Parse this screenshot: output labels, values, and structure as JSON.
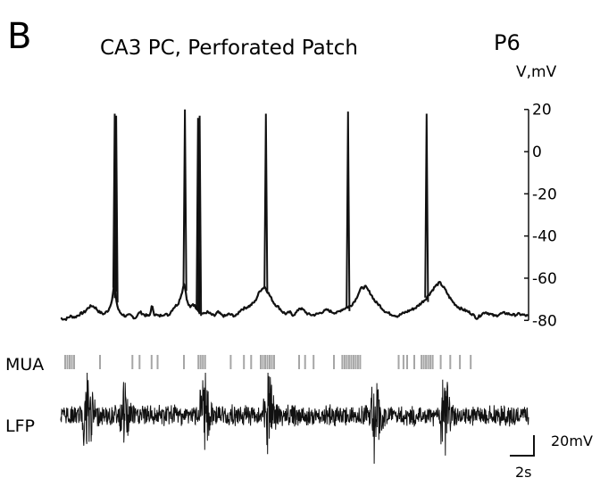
{
  "panel_letter": "B",
  "title": "CA3 PC, Perforated Patch",
  "age_label": "P6",
  "colors": {
    "trace": "#111111",
    "mua": "#a6a6a6",
    "axis": "#111111",
    "background": "#ffffff"
  },
  "chart_data": {
    "type": "line",
    "title": "CA3 PC, Perforated Patch",
    "series": [
      {
        "x": [
          0.0,
          0.4,
          0.8,
          1.2,
          1.6,
          2.0,
          2.3,
          2.6,
          2.9,
          3.2,
          3.6,
          4.0,
          4.3,
          4.45,
          4.55,
          4.65,
          4.75,
          4.9,
          5.1,
          5.4,
          5.8,
          6.2,
          6.6,
          7.0,
          7.4,
          7.6,
          7.8,
          8.2,
          8.6,
          9.0,
          9.4,
          9.8,
          10.1,
          10.3,
          10.4,
          10.5,
          10.6,
          10.8,
          11.0,
          11.3,
          11.6,
          11.9,
          12.2,
          12.5,
          12.8,
          13.1,
          13.4,
          13.7,
          14.0,
          14.3,
          14.6,
          15.0,
          15.4,
          15.8,
          16.2,
          16.6,
          17.0,
          17.4,
          17.8,
          18.2,
          18.5,
          18.8,
          19.1,
          19.3,
          19.5,
          19.7,
          19.9,
          20.2,
          20.6,
          21.0,
          21.4,
          21.8,
          22.2,
          22.6,
          23.0,
          23.4,
          23.8,
          24.2,
          24.6,
          25.0,
          25.4,
          25.8,
          26.2,
          26.6,
          26.9,
          27.1,
          27.3,
          27.5,
          27.8,
          28.1,
          28.4,
          28.8,
          29.2,
          29.6,
          30.0,
          30.4,
          30.8,
          31.2,
          31.6,
          32.0,
          32.4,
          32.8,
          33.2,
          33.6,
          34.0,
          34.3,
          34.5,
          34.7,
          34.9,
          35.1,
          35.4,
          35.8,
          36.2,
          36.6,
          37.0,
          37.4,
          37.8,
          38.2,
          38.6,
          39.0
        ],
        "y": [
          -79,
          -79.5,
          -78,
          -78.5,
          -77,
          -76,
          -74,
          -73,
          -74,
          -76,
          -77,
          -75,
          -70,
          -63,
          -66,
          -71,
          -74,
          -76,
          -77,
          -78,
          -77.5,
          -79,
          -76,
          -77.5,
          -78,
          -73,
          -77,
          -78,
          -77,
          -77.5,
          -74,
          -72,
          -67,
          -62,
          -66,
          -70,
          -72,
          -74,
          -72,
          -74,
          -76,
          -77,
          -76,
          -77,
          -78,
          -76,
          -77.5,
          -78,
          -77,
          -77.5,
          -78,
          -75,
          -74,
          -73,
          -71,
          -66,
          -64,
          -68,
          -72,
          -74,
          -76,
          -77,
          -76,
          -77.5,
          -77,
          -76,
          -74,
          -75,
          -77,
          -77.5,
          -77,
          -76,
          -75,
          -76,
          -76.5,
          -75,
          -74,
          -73,
          -70,
          -65,
          -64,
          -67,
          -71,
          -73,
          -75,
          -76,
          -76.5,
          -77,
          -77.5,
          -78,
          -77,
          -76,
          -75,
          -74,
          -72,
          -70,
          -67,
          -64,
          -62,
          -65,
          -69,
          -72,
          -74,
          -75,
          -76,
          -77,
          -78,
          -79,
          -78,
          -77,
          -76,
          -77,
          -78,
          -77,
          -76.5,
          -77,
          -77.5,
          -77,
          -77.5,
          -78
        ]
      }
    ],
    "spikes": [
      {
        "t": 4.5,
        "peak": 18
      },
      {
        "t": 4.62,
        "peak": 17
      },
      {
        "t": 10.35,
        "peak": 20
      },
      {
        "t": 11.45,
        "peak": 16
      },
      {
        "t": 11.58,
        "peak": 17
      },
      {
        "t": 17.1,
        "peak": 18
      },
      {
        "t": 23.95,
        "peak": 19
      },
      {
        "t": 30.5,
        "peak": 18
      }
    ],
    "xlim": [
      0,
      39
    ],
    "ylim": [
      -82,
      22
    ],
    "y_axis": {
      "label": "V,mV",
      "ticks": [
        20,
        0,
        -20,
        -40,
        -60,
        -80
      ],
      "tick_labels": [
        "20",
        "0",
        "-20",
        "-40",
        "-60",
        "-80"
      ]
    },
    "mua": {
      "label": "MUA",
      "bursts": [
        [
          0.3,
          1.2
        ],
        [
          3.2,
          3.3
        ],
        [
          5.9,
          6.0
        ],
        [
          6.5,
          6.6
        ],
        [
          7.5,
          7.6
        ],
        [
          8.0,
          8.1
        ],
        [
          10.2,
          10.4
        ],
        [
          11.4,
          12.0
        ],
        [
          14.1,
          14.2
        ],
        [
          15.2,
          15.3
        ],
        [
          15.8,
          15.9
        ],
        [
          16.6,
          17.9
        ],
        [
          19.8,
          19.9
        ],
        [
          20.3,
          20.4
        ],
        [
          21.0,
          21.1
        ],
        [
          22.7,
          22.8
        ],
        [
          23.4,
          25.0
        ],
        [
          28.1,
          28.2
        ],
        [
          28.5,
          28.6
        ],
        [
          28.8,
          29.1
        ],
        [
          29.4,
          29.5
        ],
        [
          30.0,
          31.1
        ],
        [
          31.6,
          31.7
        ],
        [
          32.4,
          32.5
        ],
        [
          33.2,
          33.3
        ],
        [
          34.1,
          34.2
        ]
      ]
    },
    "lfp": {
      "label": "LFP",
      "events": [
        {
          "t": 2.2,
          "amp": 1.7
        },
        {
          "t": 5.3,
          "amp": 1.0
        },
        {
          "t": 12.0,
          "amp": 1.4
        },
        {
          "t": 17.3,
          "amp": 1.5
        },
        {
          "t": 26.2,
          "amp": 1.7
        },
        {
          "t": 32.0,
          "amp": 1.8
        }
      ]
    },
    "scalebar": {
      "vertical_label": "20mV",
      "horizontal_label": "2s"
    }
  }
}
